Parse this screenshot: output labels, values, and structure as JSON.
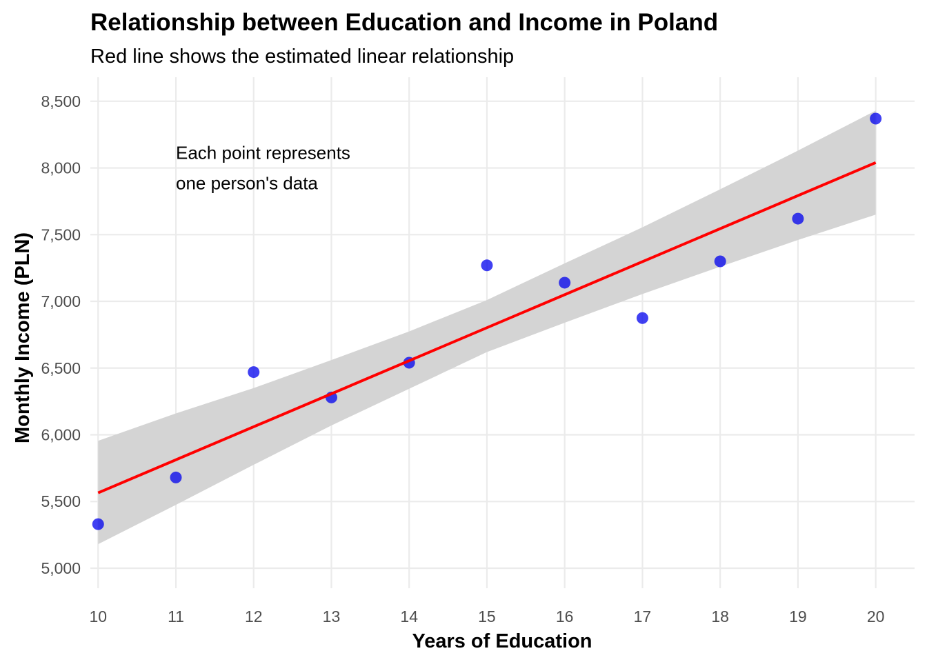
{
  "chart_data": {
    "type": "scatter",
    "title": "Relationship between Education and Income in Poland",
    "subtitle": "Red line shows the estimated linear relationship",
    "xlabel": "Years of Education",
    "ylabel": "Monthly Income (PLN)",
    "xlim": [
      9.9,
      20.5
    ],
    "ylim": [
      4850,
      8680
    ],
    "x_ticks": [
      10,
      11,
      12,
      13,
      14,
      15,
      16,
      17,
      18,
      19,
      20
    ],
    "x_tick_labels": [
      "10",
      "11",
      "12",
      "13",
      "14",
      "15",
      "16",
      "17",
      "18",
      "19",
      "20"
    ],
    "y_ticks": [
      5000,
      5500,
      6000,
      6500,
      7000,
      7500,
      8000,
      8500
    ],
    "y_tick_labels": [
      "5,000",
      "5,500",
      "6,000",
      "6,500",
      "7,000",
      "7,500",
      "8,000",
      "8,500"
    ],
    "grid": true,
    "legend": "none",
    "points": [
      {
        "x": 10,
        "y": 5330
      },
      {
        "x": 11,
        "y": 5680
      },
      {
        "x": 12,
        "y": 6470
      },
      {
        "x": 13,
        "y": 6280
      },
      {
        "x": 14,
        "y": 6540
      },
      {
        "x": 15,
        "y": 7270
      },
      {
        "x": 16,
        "y": 7140
      },
      {
        "x": 17,
        "y": 6875
      },
      {
        "x": 18,
        "y": 7300
      },
      {
        "x": 19,
        "y": 7620
      },
      {
        "x": 20,
        "y": 8370
      }
    ],
    "trend_line": {
      "x": [
        10,
        20
      ],
      "y": [
        5565,
        8040
      ]
    },
    "confidence_band": {
      "x": [
        10,
        11,
        12,
        13,
        14,
        15,
        16,
        17,
        18,
        19,
        20
      ],
      "lower": [
        5180,
        5475,
        5775,
        6070,
        6345,
        6620,
        6840,
        7055,
        7260,
        7460,
        7650
      ],
      "upper": [
        5955,
        6160,
        6350,
        6560,
        6775,
        7010,
        7285,
        7555,
        7840,
        8130,
        8430
      ]
    },
    "annotation": {
      "x": 11,
      "y": 8000,
      "lines": [
        "Each point represents",
        "one person's data"
      ]
    },
    "colors": {
      "points": "#0000ee",
      "trend_line": "#ff0000",
      "band": "#d4d4d4",
      "grid": "#ebebeb"
    }
  }
}
